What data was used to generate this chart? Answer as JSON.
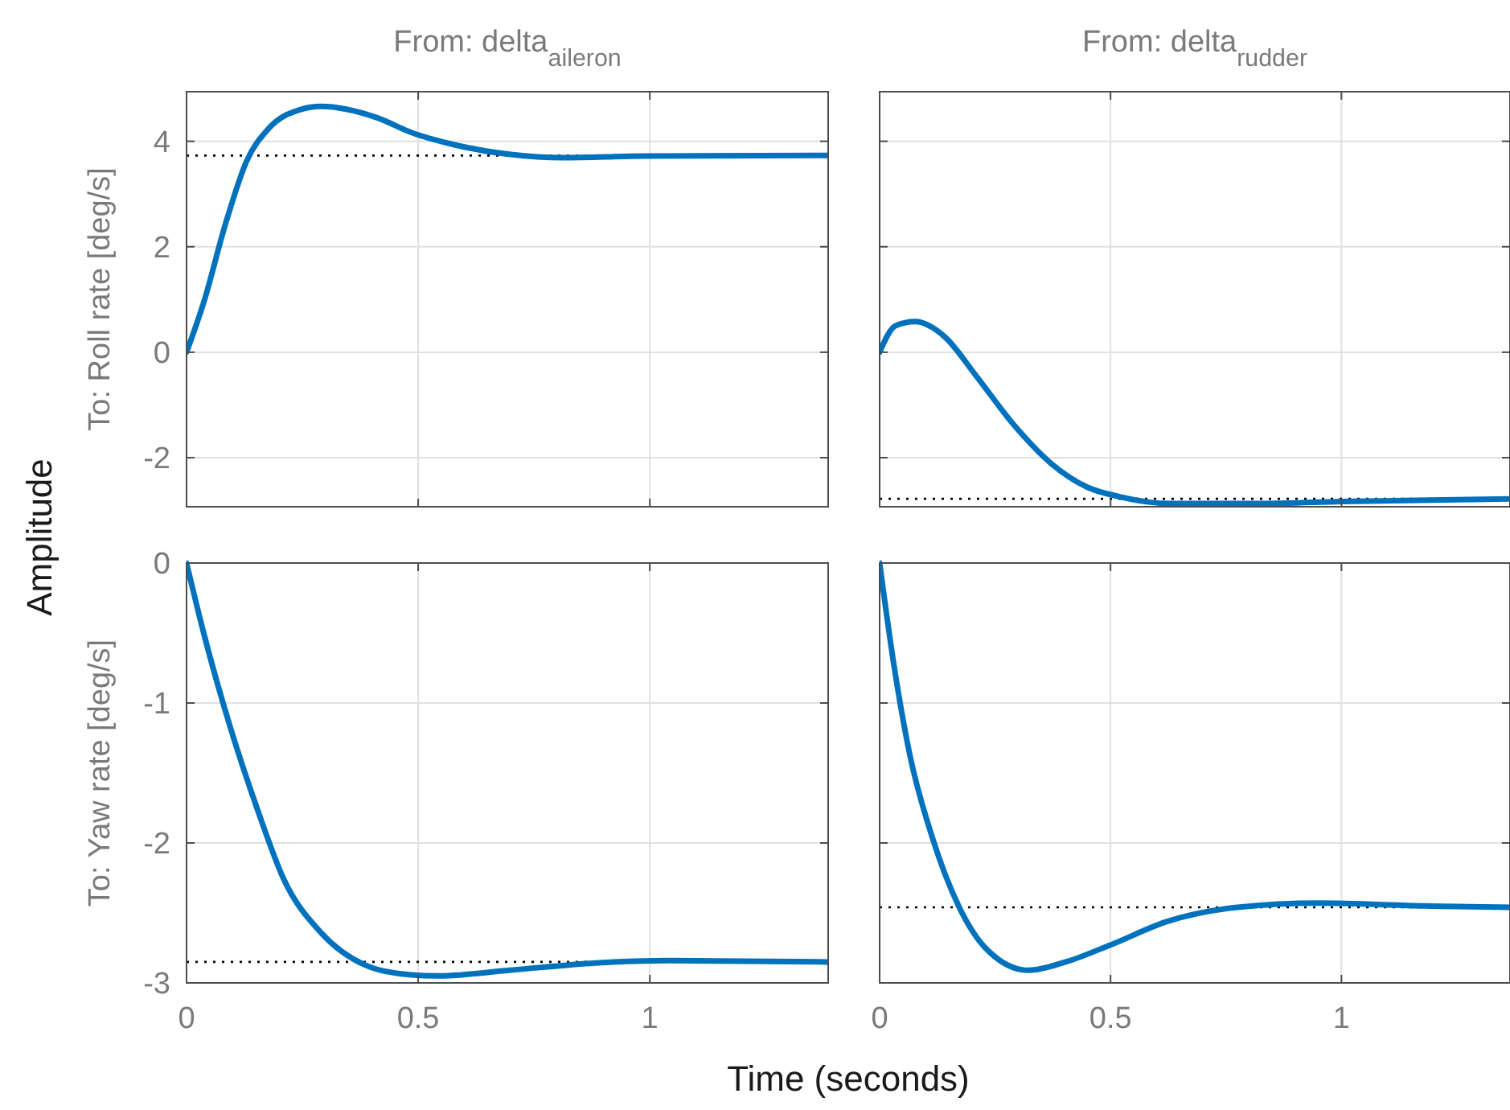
{
  "chart_data": [
    {
      "type": "line",
      "title": "From: delta$_{aileron}$",
      "ylabel": "To: Roll rate [deg/s]",
      "annotations": [
        "Amplitude"
      ],
      "xlim": [
        0,
        1.385
      ],
      "xticks": [
        0,
        0.5,
        1
      ],
      "ylim": [
        -2.93,
        4.94
      ],
      "yticks": [
        -2,
        0,
        2,
        4
      ],
      "grid": true,
      "tick_labels": "y",
      "series": [
        {
          "color": "#0072bd",
          "x": [
            0,
            0.038,
            0.083,
            0.13,
            0.177,
            0.245,
            0.29,
            0.41,
            0.49,
            0.58,
            0.7,
            0.81,
            0.99,
            1.385
          ],
          "values": [
            0,
            0.97,
            2.4,
            3.63,
            4.24,
            4.6,
            4.66,
            4.45,
            4.15,
            3.93,
            3.75,
            3.69,
            3.72,
            3.73
          ]
        }
      ],
      "ref_lines": [
        {
          "axis": "y",
          "value": 3.73,
          "color": "#000000",
          "line_style": "dotted"
        }
      ]
    },
    {
      "type": "line",
      "title": "From: delta$_{rudder}$",
      "xlim": [
        0,
        1.365
      ],
      "xticks": [
        0,
        0.5,
        1
      ],
      "ylim": [
        -2.93,
        4.94
      ],
      "yticks": [
        -2,
        0,
        2,
        4
      ],
      "grid": true,
      "tick_labels": false,
      "series": [
        {
          "color": "#0072bd",
          "x": [
            0,
            0.034,
            0.077,
            0.14,
            0.21,
            0.29,
            0.37,
            0.45,
            0.52,
            0.63,
            0.83,
            1.0,
            1.365
          ],
          "values": [
            0,
            0.5,
            0.58,
            0.3,
            -0.46,
            -1.37,
            -2.1,
            -2.56,
            -2.74,
            -2.87,
            -2.87,
            -2.83,
            -2.78
          ]
        }
      ],
      "ref_lines": [
        {
          "axis": "y",
          "value": -2.78,
          "color": "#000000",
          "line_style": "dotted"
        }
      ]
    },
    {
      "type": "line",
      "ylabel": "To: Yaw rate [deg/s]",
      "xlabel": "Time (seconds)",
      "xlim": [
        0,
        1.385
      ],
      "xticks": [
        0,
        0.5,
        1
      ],
      "ylim": [
        -3,
        0
      ],
      "yticks": [
        -3,
        -2,
        -1,
        0
      ],
      "grid": true,
      "series": [
        {
          "color": "#0072bd",
          "x": [
            0,
            0.037,
            0.095,
            0.153,
            0.21,
            0.29,
            0.384,
            0.477,
            0.546,
            0.697,
            0.87,
            1.04,
            1.385
          ],
          "values": [
            0,
            -0.5,
            -1.18,
            -1.76,
            -2.26,
            -2.64,
            -2.87,
            -2.94,
            -2.95,
            -2.91,
            -2.86,
            -2.84,
            -2.85
          ]
        }
      ],
      "ref_lines": [
        {
          "axis": "y",
          "value": -2.85,
          "color": "#000000",
          "line_style": "dotted"
        }
      ]
    },
    {
      "type": "line",
      "xlim": [
        0,
        1.365
      ],
      "xticks": [
        0,
        0.5,
        1
      ],
      "ylim": [
        -3,
        0
      ],
      "yticks": [
        -3,
        -2,
        -1,
        0
      ],
      "grid": true,
      "tick_labels": "x",
      "series": [
        {
          "color": "#0072bd",
          "x": [
            0,
            0.031,
            0.066,
            0.113,
            0.171,
            0.229,
            0.322,
            0.403,
            0.499,
            0.624,
            0.775,
            0.95,
            1.18,
            1.365
          ],
          "values": [
            0,
            -0.73,
            -1.38,
            -1.95,
            -2.45,
            -2.75,
            -2.91,
            -2.85,
            -2.73,
            -2.56,
            -2.46,
            -2.43,
            -2.45,
            -2.46
          ]
        }
      ],
      "ref_lines": [
        {
          "axis": "y",
          "value": -2.46,
          "color": "#000000",
          "line_style": "dotted"
        }
      ]
    }
  ]
}
